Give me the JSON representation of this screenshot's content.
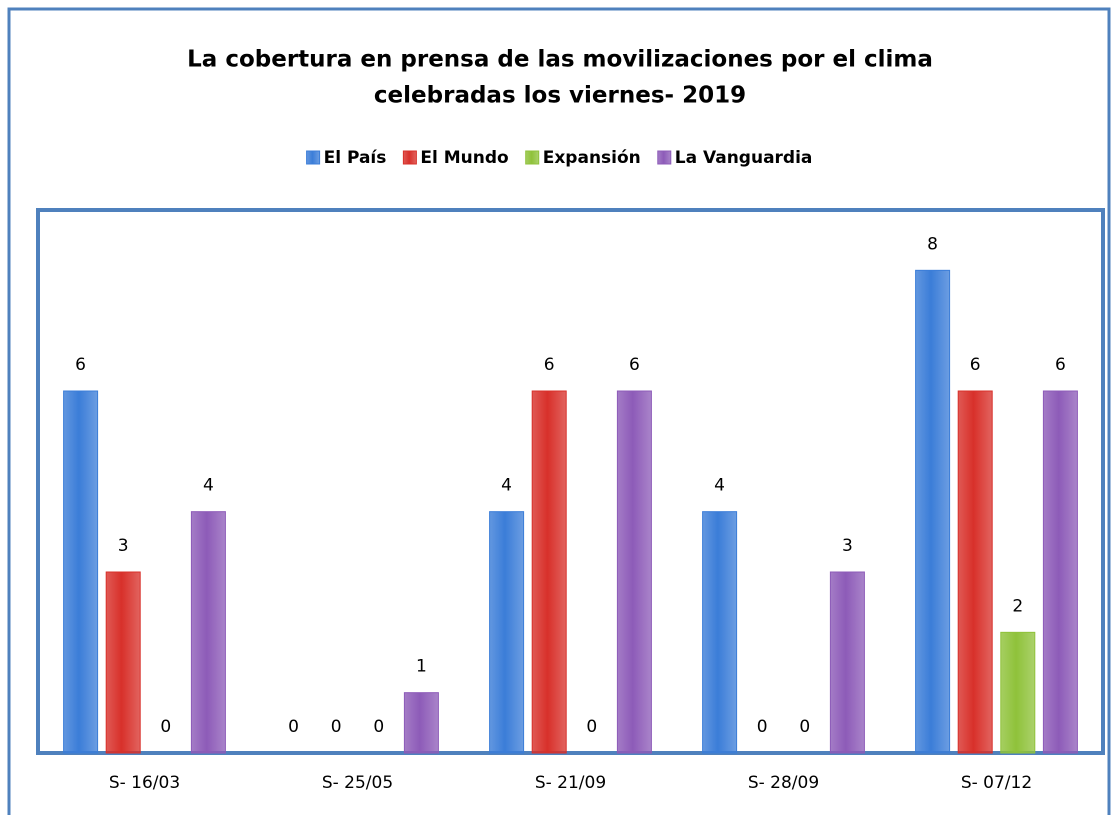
{
  "chart_data": {
    "type": "bar",
    "title": [
      "La cobertura en prensa de las movilizaciones  por el clima",
      "celebradas los viernes- 2019"
    ],
    "categories": [
      "S- 16/03",
      "S- 25/05",
      "S- 21/09",
      "S- 28/09",
      "S- 07/12"
    ],
    "series": [
      {
        "name": "El País",
        "color": "#3b7dd8",
        "values": [
          6,
          0,
          4,
          4,
          8
        ]
      },
      {
        "name": "El Mundo",
        "color": "#d8302a",
        "values": [
          3,
          0,
          6,
          0,
          6
        ]
      },
      {
        "name": "Expansión",
        "color": "#8fc23a",
        "values": [
          0,
          0,
          0,
          0,
          2
        ]
      },
      {
        "name": "La Vanguardia",
        "color": "#8d5bb8",
        "values": [
          4,
          1,
          6,
          3,
          6
        ]
      }
    ],
    "ylim": [
      0,
      9
    ]
  }
}
